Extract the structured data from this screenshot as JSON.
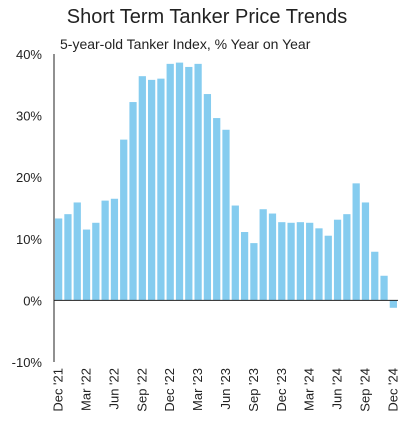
{
  "chart_data": {
    "type": "bar",
    "title": "Short Term Tanker Price Trends",
    "subtitle": "5-year-old Tanker Index, % Year on Year",
    "xlabel": "",
    "ylabel": "",
    "ylim": [
      -10,
      40
    ],
    "y_ticks": [
      "-10%",
      "0%",
      "10%",
      "20%",
      "30%",
      "40%"
    ],
    "y_tick_values": [
      -10,
      0,
      10,
      20,
      30,
      40
    ],
    "bar_color": "#85CCEF",
    "x_tick_labels": [
      "Dec '21",
      "Mar '22",
      "Jun '22",
      "Sep '22",
      "Dec '22",
      "Mar '23",
      "Jun '23",
      "Sep '23",
      "Dec '23",
      "Mar '24",
      "Jun '24",
      "Sep '24",
      "Dec '24"
    ],
    "categories": [
      "Dec '21",
      "Jan '22",
      "Feb '22",
      "Mar '22",
      "Apr '22",
      "May '22",
      "Jun '22",
      "Jul '22",
      "Aug '22",
      "Sep '22",
      "Oct '22",
      "Nov '22",
      "Dec '22",
      "Jan '23",
      "Feb '23",
      "Mar '23",
      "Apr '23",
      "May '23",
      "Jun '23",
      "Jul '23",
      "Aug '23",
      "Sep '23",
      "Oct '23",
      "Nov '23",
      "Dec '23",
      "Jan '24",
      "Feb '24",
      "Mar '24",
      "Apr '24",
      "May '24",
      "Jun '24",
      "Jul '24",
      "Aug '24",
      "Sep '24",
      "Oct '24",
      "Nov '24",
      "Dec '24"
    ],
    "values": [
      13.3,
      14.0,
      15.9,
      11.5,
      12.6,
      16.2,
      16.5,
      26.1,
      32.2,
      36.4,
      35.8,
      36.0,
      38.4,
      38.6,
      37.9,
      38.4,
      33.5,
      29.6,
      27.7,
      15.4,
      11.1,
      9.3,
      14.8,
      14.1,
      12.7,
      12.6,
      12.7,
      12.6,
      11.7,
      10.5,
      13.1,
      14.0,
      19.0,
      15.9,
      7.9,
      4.0,
      -1.2
    ]
  }
}
